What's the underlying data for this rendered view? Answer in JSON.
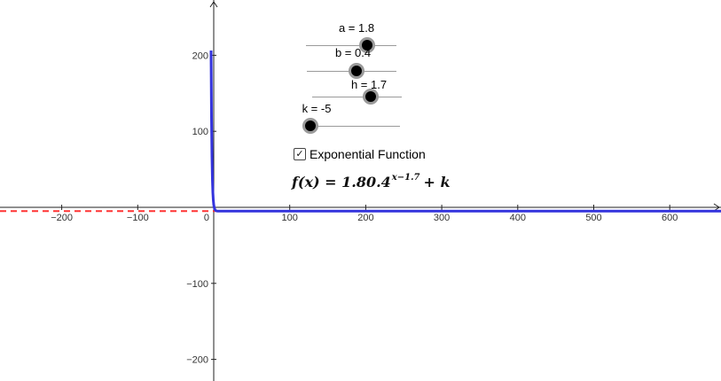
{
  "sliders": [
    {
      "id": "a",
      "label": "a = 1.8",
      "value": 1.8,
      "min": -5,
      "max": 5
    },
    {
      "id": "b",
      "label": "b = 0.4",
      "value": 0.4,
      "min": -5,
      "max": 5
    },
    {
      "id": "h",
      "label": "h = 1.7",
      "value": 1.7,
      "min": -5,
      "max": 5
    },
    {
      "id": "k",
      "label": "k = -5",
      "value": -5,
      "min": -5,
      "max": 5
    }
  ],
  "checkbox": {
    "label": "Exponential Function",
    "checked": true,
    "mark": "✓"
  },
  "formula": {
    "main": "f(x) = 1.80.4",
    "exponent": "x−1.7",
    "tail": "+ k"
  },
  "axes": {
    "x_ticks": [
      "−200",
      "−100",
      "0",
      "100",
      "200",
      "300",
      "400",
      "500",
      "600"
    ],
    "y_ticks": [
      "200",
      "100",
      "−100",
      "−200"
    ]
  },
  "function": {
    "a": 1.8,
    "b": 0.4,
    "h": 1.7,
    "k": -5,
    "color": "#3333dd"
  },
  "asymptote": {
    "y": -5,
    "color": "#ff3333"
  }
}
